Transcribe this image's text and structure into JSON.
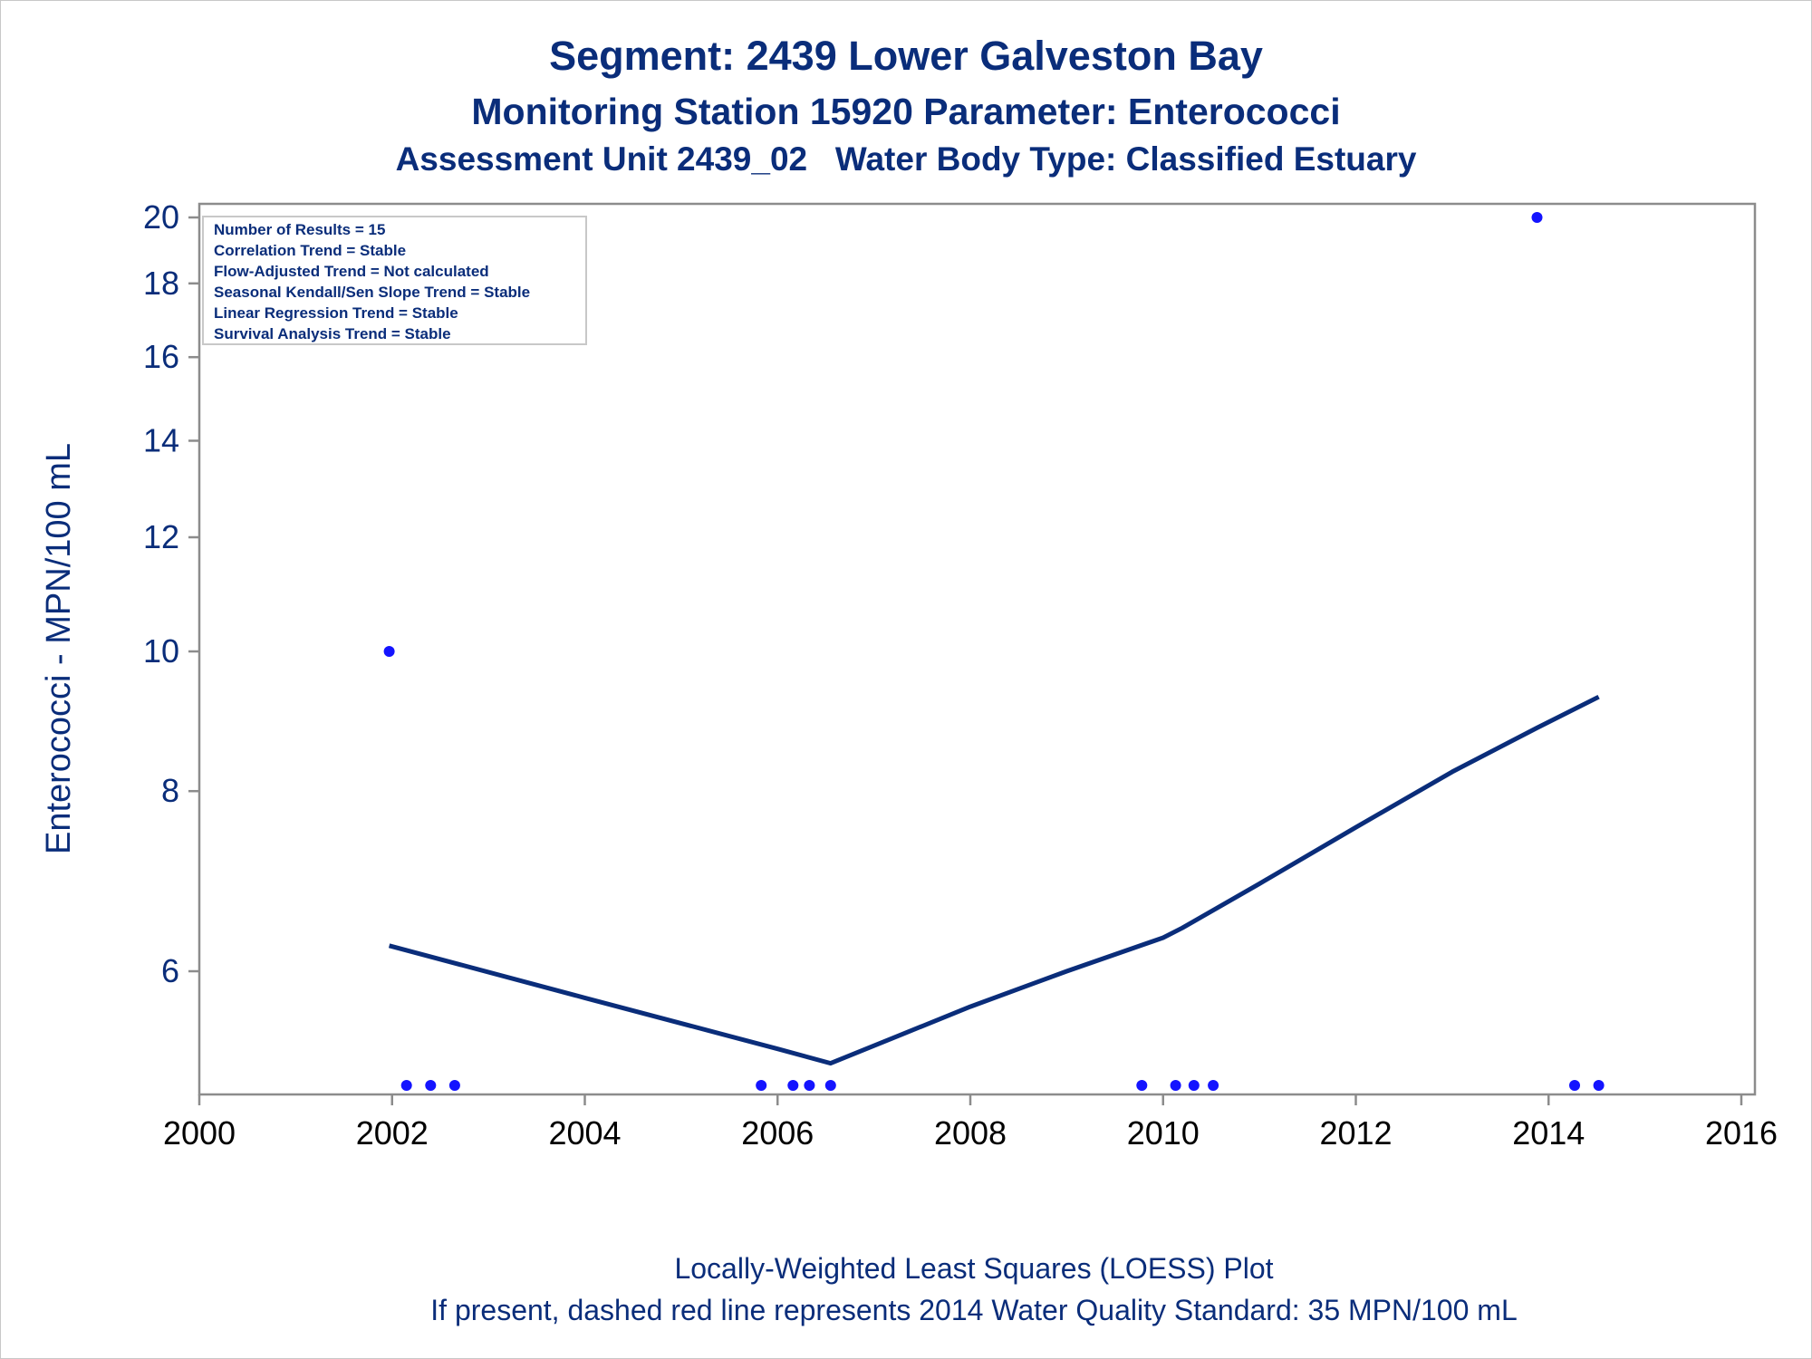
{
  "title": "Segment: 2439  Lower Galveston Bay",
  "subtitle": "Monitoring Station 15920 Parameter: Enterococci",
  "subtitle2": "Assessment Unit 2439_02   Water Body Type: Classified Estuary",
  "footnote1": "Locally-Weighted Least Squares (LOESS) Plot",
  "footnote2": "If present, dashed red line represents 2014 Water Quality Standard: 35 MPN/100 mL",
  "colors": {
    "text": "#0a2d7a",
    "points": "#1414ff",
    "line": "#0a2d7a",
    "axis": "#8c8c8c",
    "inset_border": "#c8c8c8"
  },
  "inset": {
    "lines": [
      "Number of Results = 15",
      "Correlation Trend = Stable",
      "Flow-Adjusted Trend = Not calculated",
      "Seasonal Kendall/Sen Slope Trend = Stable",
      "Linear Regression Trend = Stable",
      "Survival Analysis Trend = Stable"
    ]
  },
  "chart_data": {
    "type": "scatter",
    "xlabel": "",
    "ylabel": "Enterococci - MPN/100 mL",
    "xlim": [
      2000,
      2016
    ],
    "x_ticks": [
      2000,
      2002,
      2004,
      2006,
      2008,
      2010,
      2012,
      2014,
      2016
    ],
    "y_scale": "log",
    "ylim": [
      5,
      20
    ],
    "y_ticks": [
      6,
      8,
      10,
      12,
      14,
      16,
      18,
      20
    ],
    "grid": false,
    "series": [
      {
        "type": "scatter",
        "x": [
          2001.97,
          2002.15,
          2002.4,
          2002.65,
          2005.83,
          2006.16,
          2006.33,
          2006.55,
          2009.78,
          2010.13,
          2010.32,
          2010.52,
          2013.88,
          2014.27,
          2014.52
        ],
        "y": [
          10,
          5,
          5,
          5,
          5,
          5,
          5,
          5,
          5,
          5,
          5,
          5,
          20,
          5,
          5
        ]
      },
      {
        "type": "line",
        "x": [
          2001.97,
          2004.0,
          2006.0,
          2006.55,
          2008.0,
          2009.0,
          2010.0,
          2010.2,
          2011.0,
          2012.0,
          2013.0,
          2013.88,
          2014.52
        ],
        "y": [
          6.25,
          5.75,
          5.3,
          5.18,
          5.67,
          6.0,
          6.33,
          6.43,
          6.9,
          7.55,
          8.25,
          8.85,
          9.3
        ]
      }
    ]
  }
}
